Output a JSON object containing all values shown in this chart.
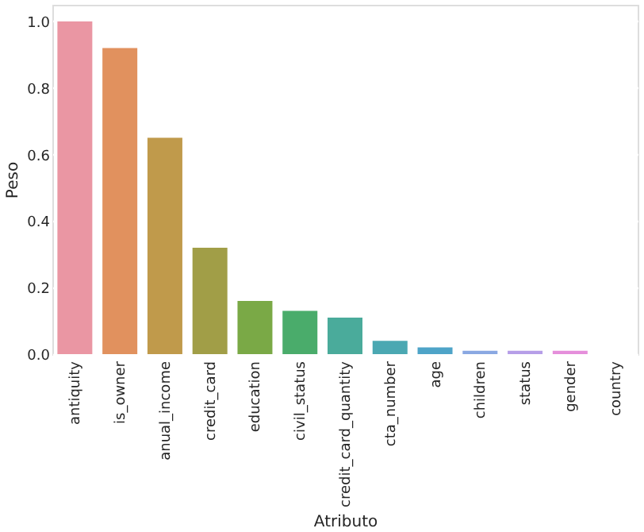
{
  "chart_data": {
    "type": "bar",
    "xlabel": "Atributo",
    "ylabel": "Peso",
    "categories": [
      "antiquity",
      "is_owner",
      "anual_income",
      "credit_card",
      "education",
      "civil_status",
      "credit_card_quantity",
      "cta_number",
      "age",
      "children",
      "status",
      "gender",
      "country"
    ],
    "values": [
      1.0,
      0.92,
      0.65,
      0.32,
      0.16,
      0.13,
      0.11,
      0.04,
      0.02,
      0.01,
      0.01,
      0.01,
      0.0
    ],
    "colors": [
      "#ea96a3",
      "#e1915e",
      "#c09a4b",
      "#a19e47",
      "#7aa946",
      "#4aac6b",
      "#4aab9b",
      "#4ba8b2",
      "#4ea4c8",
      "#8aa8e2",
      "#b69ee8",
      "#e58fdb",
      "#ee8bc0"
    ],
    "ylim": [
      0,
      1.05
    ],
    "yticks": [
      {
        "value": 0,
        "label": "0.0"
      },
      0.2,
      0.4,
      0.6,
      0.8,
      {
        "value": 1,
        "label": "1.0"
      }
    ],
    "grid": "y",
    "legend": false
  }
}
